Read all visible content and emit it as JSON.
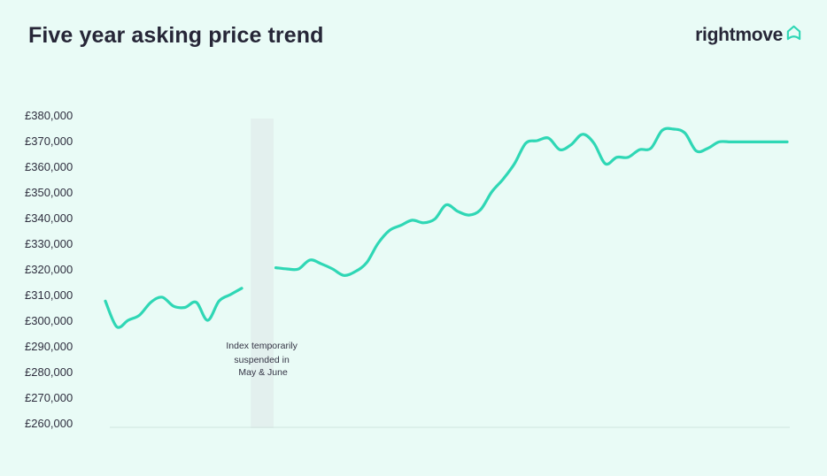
{
  "header": {
    "title": "Five year asking price trend",
    "brand": "rightmove",
    "brand_icon": "house-outline-icon"
  },
  "colors": {
    "background": "#e9fbf6",
    "line": "#2fd7b5",
    "title_text": "#262637",
    "suspension_band": "#e3f0ee",
    "axis_line": "#cfe5df"
  },
  "chart_data": {
    "type": "line",
    "title": "Five year asking price trend",
    "xlabel": "",
    "ylabel": "",
    "ylim": [
      260000,
      380000
    ],
    "yticks": [
      260000,
      270000,
      280000,
      290000,
      300000,
      310000,
      320000,
      330000,
      340000,
      350000,
      360000,
      370000,
      380000
    ],
    "ytick_labels": [
      "£260,000",
      "£270,000",
      "£280,000",
      "£290,000",
      "£300,000",
      "£310,000",
      "£320,000",
      "£330,000",
      "£340,000",
      "£350,000",
      "£360,000",
      "£370,000",
      "£380,000"
    ],
    "grid": false,
    "legend": "none",
    "x_unit": "months (5 years, unlabelled)",
    "suspended_months": [
      13,
      14
    ],
    "annotation": [
      "Index temporarily",
      "suspended in",
      "May & June"
    ],
    "series": [
      {
        "segments": [
          {
            "x": [
              0,
              1,
              2,
              3,
              4,
              5,
              6,
              7,
              8,
              9,
              10,
              11,
              12
            ],
            "y": [
              307500,
              297500,
              300000,
              302000,
              307000,
              309000,
              305500,
              305000,
              307000,
              300000,
              307500,
              310000,
              312500
            ]
          },
          {
            "x": [
              15,
              16,
              17,
              18,
              19,
              20,
              21,
              22,
              23,
              24,
              25,
              26,
              27,
              28,
              29,
              30,
              31,
              32,
              33,
              34,
              35,
              36,
              37,
              38,
              39,
              40,
              41,
              42,
              43,
              44,
              45,
              46,
              47,
              48,
              49,
              50,
              51,
              52,
              53,
              54,
              55,
              56,
              57,
              58,
              59,
              60
            ],
            "y": [
              320500,
              320000,
              320000,
              323500,
              322000,
              320000,
              317500,
              319000,
              322500,
              330000,
              335000,
              337000,
              339000,
              338000,
              339500,
              345000,
              342500,
              341000,
              343000,
              350000,
              355000,
              361000,
              369000,
              370000,
              371000,
              366500,
              368500,
              372500,
              369000,
              361000,
              363500,
              363500,
              366500,
              367000,
              374000,
              374500,
              373000,
              366000,
              367000,
              369500,
              369500,
              369500,
              369500,
              369500,
              369500,
              369500
            ]
          }
        ]
      }
    ]
  }
}
